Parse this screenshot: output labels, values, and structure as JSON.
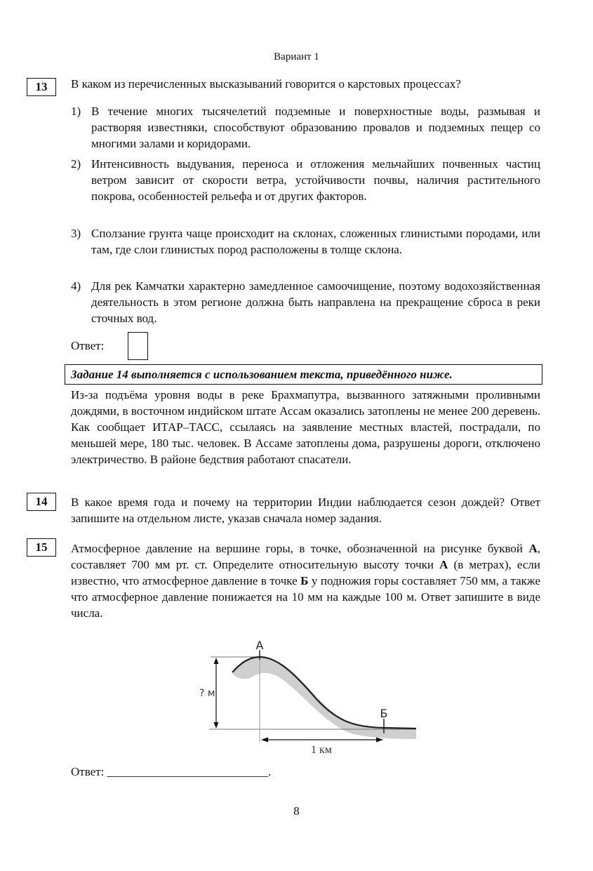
{
  "header": "Вариант 1",
  "q13": {
    "number": "13",
    "question": "В каком из перечисленных высказываний говорится о карстовых процессах?",
    "options": [
      {
        "num": "1)",
        "text": "В течение многих тысячелетий подземные и поверхностные воды, размывая и растворяя известняки, способствуют образованию провалов и подземных пещер со многими залами и коридорами."
      },
      {
        "num": "2)",
        "text": "Интенсивность выдувания, переноса и отложения мельчайших почвенных частиц ветром зависит от скорости ветра, устойчивости почвы, наличия растительного покрова, особенностей рельефа и от других факторов."
      },
      {
        "num": "3)",
        "text": "Сползание грунта чаще происходит на склонах, сложенных глинистыми породами, или там, где слои глинистых пород расположены в толще склона."
      },
      {
        "num": "4)",
        "text": "Для рек Камчатки характерно замедленное самоочищение, поэтому водохозяйственная деятельность в этом регионе должна быть направлена на прекращение сброса в реки сточных вод."
      }
    ],
    "answer_label": "Ответ:"
  },
  "text_block": {
    "title": "Задание 14 выполняется с использованием текста, приведённого ниже.",
    "text": "Из-за подъёма уровня воды в реке Брахмапутра, вызванного затяжными проливными дождями, в восточном индийском штате Ассам оказались затоплены не менее 200 деревень. Как сообщает ИТАР–ТАСС, ссылаясь на заявление местных властей, пострадали, по меньшей мере, 180 тыс. человек. В Ассаме затоплены дома, разрушены дороги, отключено электричество. В районе бедствия работают спасатели."
  },
  "q14": {
    "number": "14",
    "text": "В какое время года и почему на территории Индии наблюдается сезон дождей? Ответ запишите на отдельном листе, указав сначала номер задания."
  },
  "q15": {
    "number": "15",
    "text_parts": [
      "Атмосферное давление на вершине горы, в точке, обозначенной на рисунке буквой ",
      "А",
      ", составляет 700 мм рт. ст. Определите относительную высоту точки ",
      "А",
      " (в метрах), если известно, что атмосферное давление в точке ",
      "Б",
      " у подножия горы составляет 750 мм, а также что атмосферное давление понижается на 10 мм на каждые 100 м. Ответ запишите в виде числа."
    ],
    "figure": {
      "label_a": "А",
      "label_b": "Б",
      "height_label": "? м",
      "distance_label": "1 км"
    },
    "answer_label": "Ответ:",
    "answer_line": "___________________________."
  },
  "page_number": "8"
}
